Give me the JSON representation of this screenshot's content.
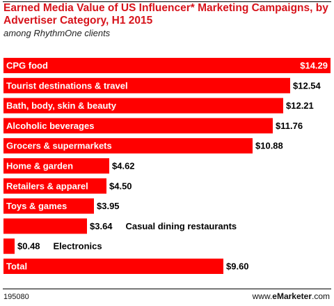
{
  "title": "Earned Media Value of US Influencer* Marketing Campaigns, by Advertiser Category, H1 2015",
  "subtitle": "among RhythmOne clients",
  "footer": {
    "chart_id": "195080",
    "brand_prefix": "www.",
    "brand_main": "eMarketer",
    "brand_suffix": ".com"
  },
  "colors": {
    "bar": "#ff0000",
    "title": "#d7131b",
    "label_inside": "#ffffff",
    "label_outside": "#000000"
  },
  "chart_data": {
    "type": "bar",
    "orientation": "horizontal",
    "title": "Earned Media Value of US Influencer* Marketing Campaigns, by Advertiser Category, H1 2015",
    "subtitle": "among RhythmOne clients",
    "categories": [
      "CPG food",
      "Tourist destinations & travel",
      "Bath, body, skin & beauty",
      "Alcoholic beverages",
      "Grocers & supermarkets",
      "Home & garden",
      "Retailers & apparel",
      "Toys & games",
      "Casual dining restaurants",
      "Electronics",
      "Total"
    ],
    "values": [
      14.29,
      12.54,
      12.21,
      11.76,
      10.88,
      4.62,
      4.5,
      3.95,
      3.64,
      0.48,
      9.6
    ],
    "value_labels": [
      "$14.29",
      "$12.54",
      "$12.21",
      "$11.76",
      "$10.88",
      "$4.62",
      "$4.50",
      "$3.95",
      "$3.64",
      "$0.48",
      "$9.60"
    ],
    "xlim": [
      0,
      14.29
    ]
  }
}
